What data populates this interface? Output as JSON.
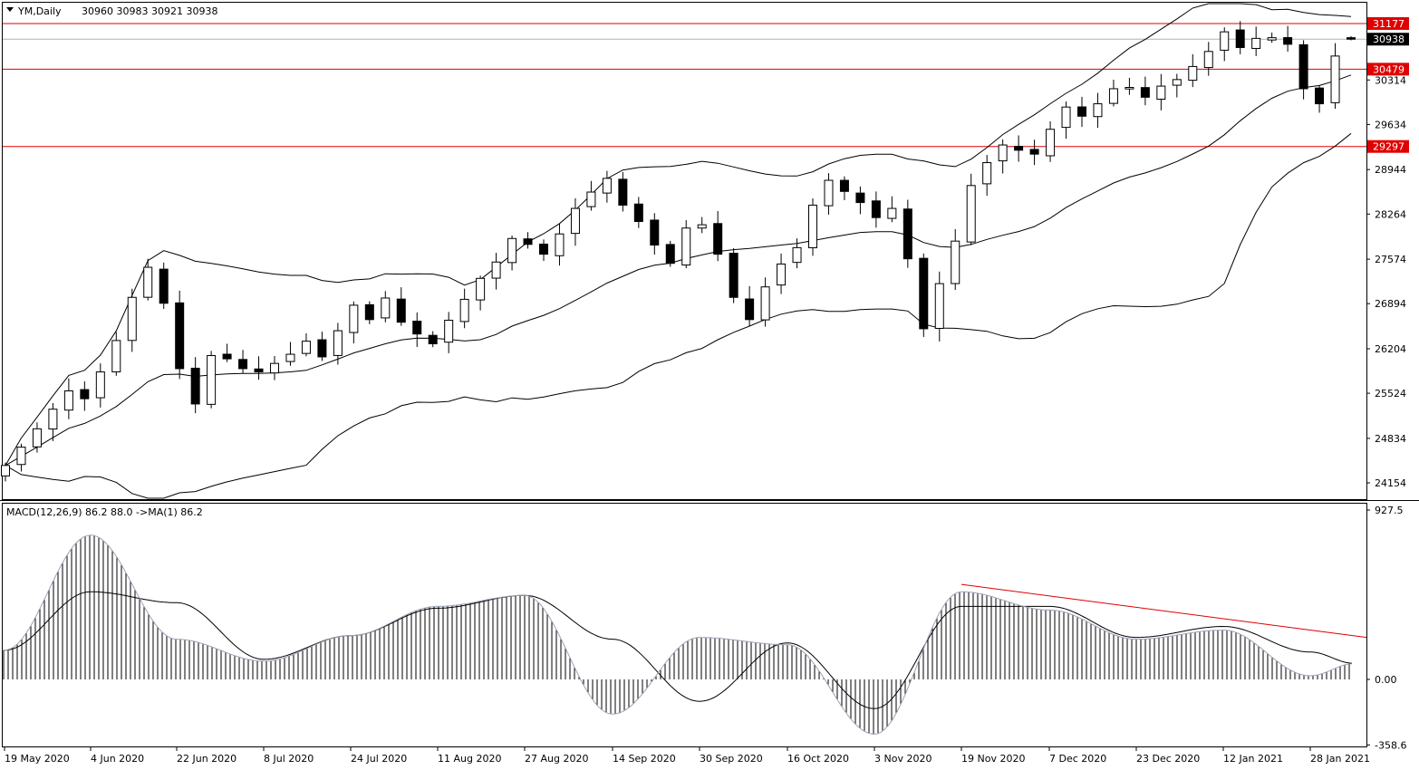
{
  "header": {
    "symbol_label": "YM,Daily",
    "ohlc_label": "30960 30983 30921 30938"
  },
  "indicator": {
    "label": "MACD(12,26,9) 86.2 88.0  ->MA(1) 86.2"
  },
  "colors": {
    "level_line": "#e00000",
    "current_tag": "#000000",
    "trendline": "#e00000",
    "bull_body": "#ffffff",
    "bear_body": "#000000"
  },
  "chart_data": [
    {
      "type": "candlestick",
      "symbol": "YM",
      "timeframe": "Daily",
      "price_axis": {
        "ticks": [
          "24154",
          "24834",
          "25524",
          "26204",
          "26894",
          "27574",
          "28264",
          "28944",
          "29634",
          "30314"
        ],
        "range": [
          24000,
          31400
        ]
      },
      "time_axis": {
        "ticks": [
          "19 May 2020",
          "4 Jun 2020",
          "22 Jun 2020",
          "8 Jul 2020",
          "24 Jul 2020",
          "11 Aug 2020",
          "27 Aug 2020",
          "14 Sep 2020",
          "30 Sep 2020",
          "16 Oct 2020",
          "3 Nov 2020",
          "19 Nov 2020",
          "7 Dec 2020",
          "23 Dec 2020",
          "12 Jan 2021",
          "28 Jan 2021"
        ]
      },
      "horizontal_levels": [
        "31177",
        "30479",
        "29297"
      ],
      "current_price": "30938",
      "last_bar_ohlc": {
        "open": 30960,
        "high": 30983,
        "low": 30921,
        "close": 30938
      },
      "closes": [
        24420,
        24700,
        24980,
        25280,
        25560,
        25440,
        25850,
        26330,
        26990,
        27450,
        26900,
        25900,
        25360,
        26100,
        26050,
        25900,
        25850,
        25980,
        26120,
        26320,
        26080,
        26480,
        26870,
        26650,
        26980,
        26610,
        26430,
        26280,
        26640,
        26960,
        27280,
        27530,
        27890,
        27800,
        27650,
        27960,
        28350,
        28600,
        28810,
        28400,
        28150,
        27790,
        27510,
        28050,
        28100,
        27650,
        26990,
        26650,
        27150,
        27500,
        27750,
        28400,
        28780,
        28610,
        28440,
        28210,
        28350,
        27580,
        26510,
        27200,
        27850,
        28700,
        29050,
        29320,
        29240,
        29180,
        29560,
        29900,
        29760,
        29950,
        30180,
        30200,
        30050,
        30220,
        30320,
        30520,
        30750,
        31050,
        30810,
        30950,
        30960,
        30860,
        30180,
        29950,
        30680,
        30938
      ],
      "bollinger": {
        "period": 20,
        "deviations": 2
      },
      "moving_average": {
        "type": "SMA",
        "period": 20
      },
      "ma_reference_points": [
        {
          "x": "19 May 2020",
          "y": 24100
        },
        {
          "x": "4 Jun 2020",
          "y": 25300
        },
        {
          "x": "22 Jun 2020",
          "y": 25980
        },
        {
          "x": "8 Jul 2020",
          "y": 25730
        },
        {
          "x": "24 Jul 2020",
          "y": 26280
        },
        {
          "x": "11 Aug 2020",
          "y": 27050
        },
        {
          "x": "27 Aug 2020",
          "y": 28050
        },
        {
          "x": "14 Sep 2020",
          "y": 28150
        },
        {
          "x": "30 Sep 2020",
          "y": 27570
        },
        {
          "x": "16 Oct 2020",
          "y": 28160
        },
        {
          "x": "3 Nov 2020",
          "y": 27800
        },
        {
          "x": "19 Nov 2020",
          "y": 28950
        },
        {
          "x": "7 Dec 2020",
          "y": 29780
        },
        {
          "x": "23 Dec 2020",
          "y": 30050
        },
        {
          "x": "12 Jan 2021",
          "y": 30500
        },
        {
          "x": "28 Jan 2021",
          "y": 30280
        }
      ]
    },
    {
      "type": "bar",
      "title": "MACD(12,26,9)",
      "values_label": "86.2 88.0",
      "y_ticks": [
        "927.5",
        "0.00",
        "-358.6"
      ],
      "ylim": [
        -358.6,
        927.5
      ],
      "macd_main": 86.2,
      "macd_signal": 88.0,
      "macd_points": [
        {
          "x": "19 May 2020",
          "y": 160
        },
        {
          "x": "4 Jun 2020",
          "y": 790
        },
        {
          "x": "22 Jun 2020",
          "y": 220
        },
        {
          "x": "8 Jul 2020",
          "y": 100
        },
        {
          "x": "24 Jul 2020",
          "y": 240
        },
        {
          "x": "11 Aug 2020",
          "y": 400
        },
        {
          "x": "27 Aug 2020",
          "y": 460
        },
        {
          "x": "14 Sep 2020",
          "y": -190
        },
        {
          "x": "30 Sep 2020",
          "y": 230
        },
        {
          "x": "16 Oct 2020",
          "y": 190
        },
        {
          "x": "3 Nov 2020",
          "y": -300
        },
        {
          "x": "19 Nov 2020",
          "y": 480
        },
        {
          "x": "7 Dec 2020",
          "y": 380
        },
        {
          "x": "23 Dec 2020",
          "y": 220
        },
        {
          "x": "12 Jan 2021",
          "y": 270
        },
        {
          "x": "28 Jan 2021",
          "y": 20
        },
        {
          "x": "3 Feb 2021",
          "y": 86.2
        }
      ],
      "signal_points": [
        {
          "x": "19 May 2020",
          "y": 160
        },
        {
          "x": "4 Jun 2020",
          "y": 480
        },
        {
          "x": "22 Jun 2020",
          "y": 420
        },
        {
          "x": "8 Jul 2020",
          "y": 110
        },
        {
          "x": "24 Jul 2020",
          "y": 240
        },
        {
          "x": "11 Aug 2020",
          "y": 390
        },
        {
          "x": "27 Aug 2020",
          "y": 460
        },
        {
          "x": "14 Sep 2020",
          "y": 220
        },
        {
          "x": "30 Sep 2020",
          "y": -120
        },
        {
          "x": "16 Oct 2020",
          "y": 200
        },
        {
          "x": "3 Nov 2020",
          "y": -160
        },
        {
          "x": "19 Nov 2020",
          "y": 400
        },
        {
          "x": "7 Dec 2020",
          "y": 400
        },
        {
          "x": "23 Dec 2020",
          "y": 230
        },
        {
          "x": "12 Jan 2021",
          "y": 290
        },
        {
          "x": "28 Jan 2021",
          "y": 150
        },
        {
          "x": "3 Feb 2021",
          "y": 88.0
        }
      ],
      "trendline": [
        {
          "x": "19 Nov 2020",
          "y": 520
        },
        {
          "x": "3 Feb 2021",
          "y": 230
        }
      ]
    }
  ]
}
